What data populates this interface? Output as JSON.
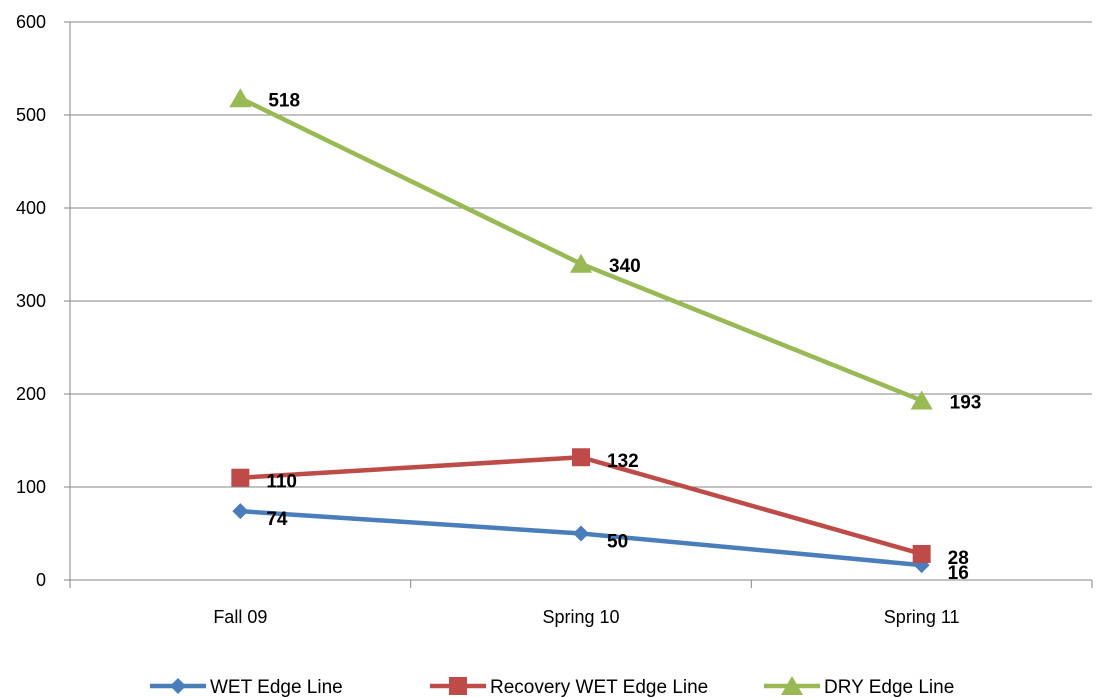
{
  "chart_data": {
    "type": "line",
    "categories": [
      "Fall 09",
      "Spring 10",
      "Spring 11"
    ],
    "ylim": [
      0,
      600
    ],
    "yticks": [
      0,
      100,
      200,
      300,
      400,
      500,
      600
    ],
    "grid": true,
    "legend_position": "bottom",
    "data_labels": true,
    "series": [
      {
        "name": "WET Edge Line",
        "values": [
          74,
          50,
          16
        ],
        "color": "#4A7EBB",
        "marker": "diamond"
      },
      {
        "name": "Recovery WET Edge Line",
        "values": [
          110,
          132,
          28
        ],
        "color": "#BE4B48",
        "marker": "square"
      },
      {
        "name": "DRY Edge Line",
        "values": [
          518,
          340,
          193
        ],
        "color": "#98B954",
        "marker": "triangle"
      }
    ]
  }
}
